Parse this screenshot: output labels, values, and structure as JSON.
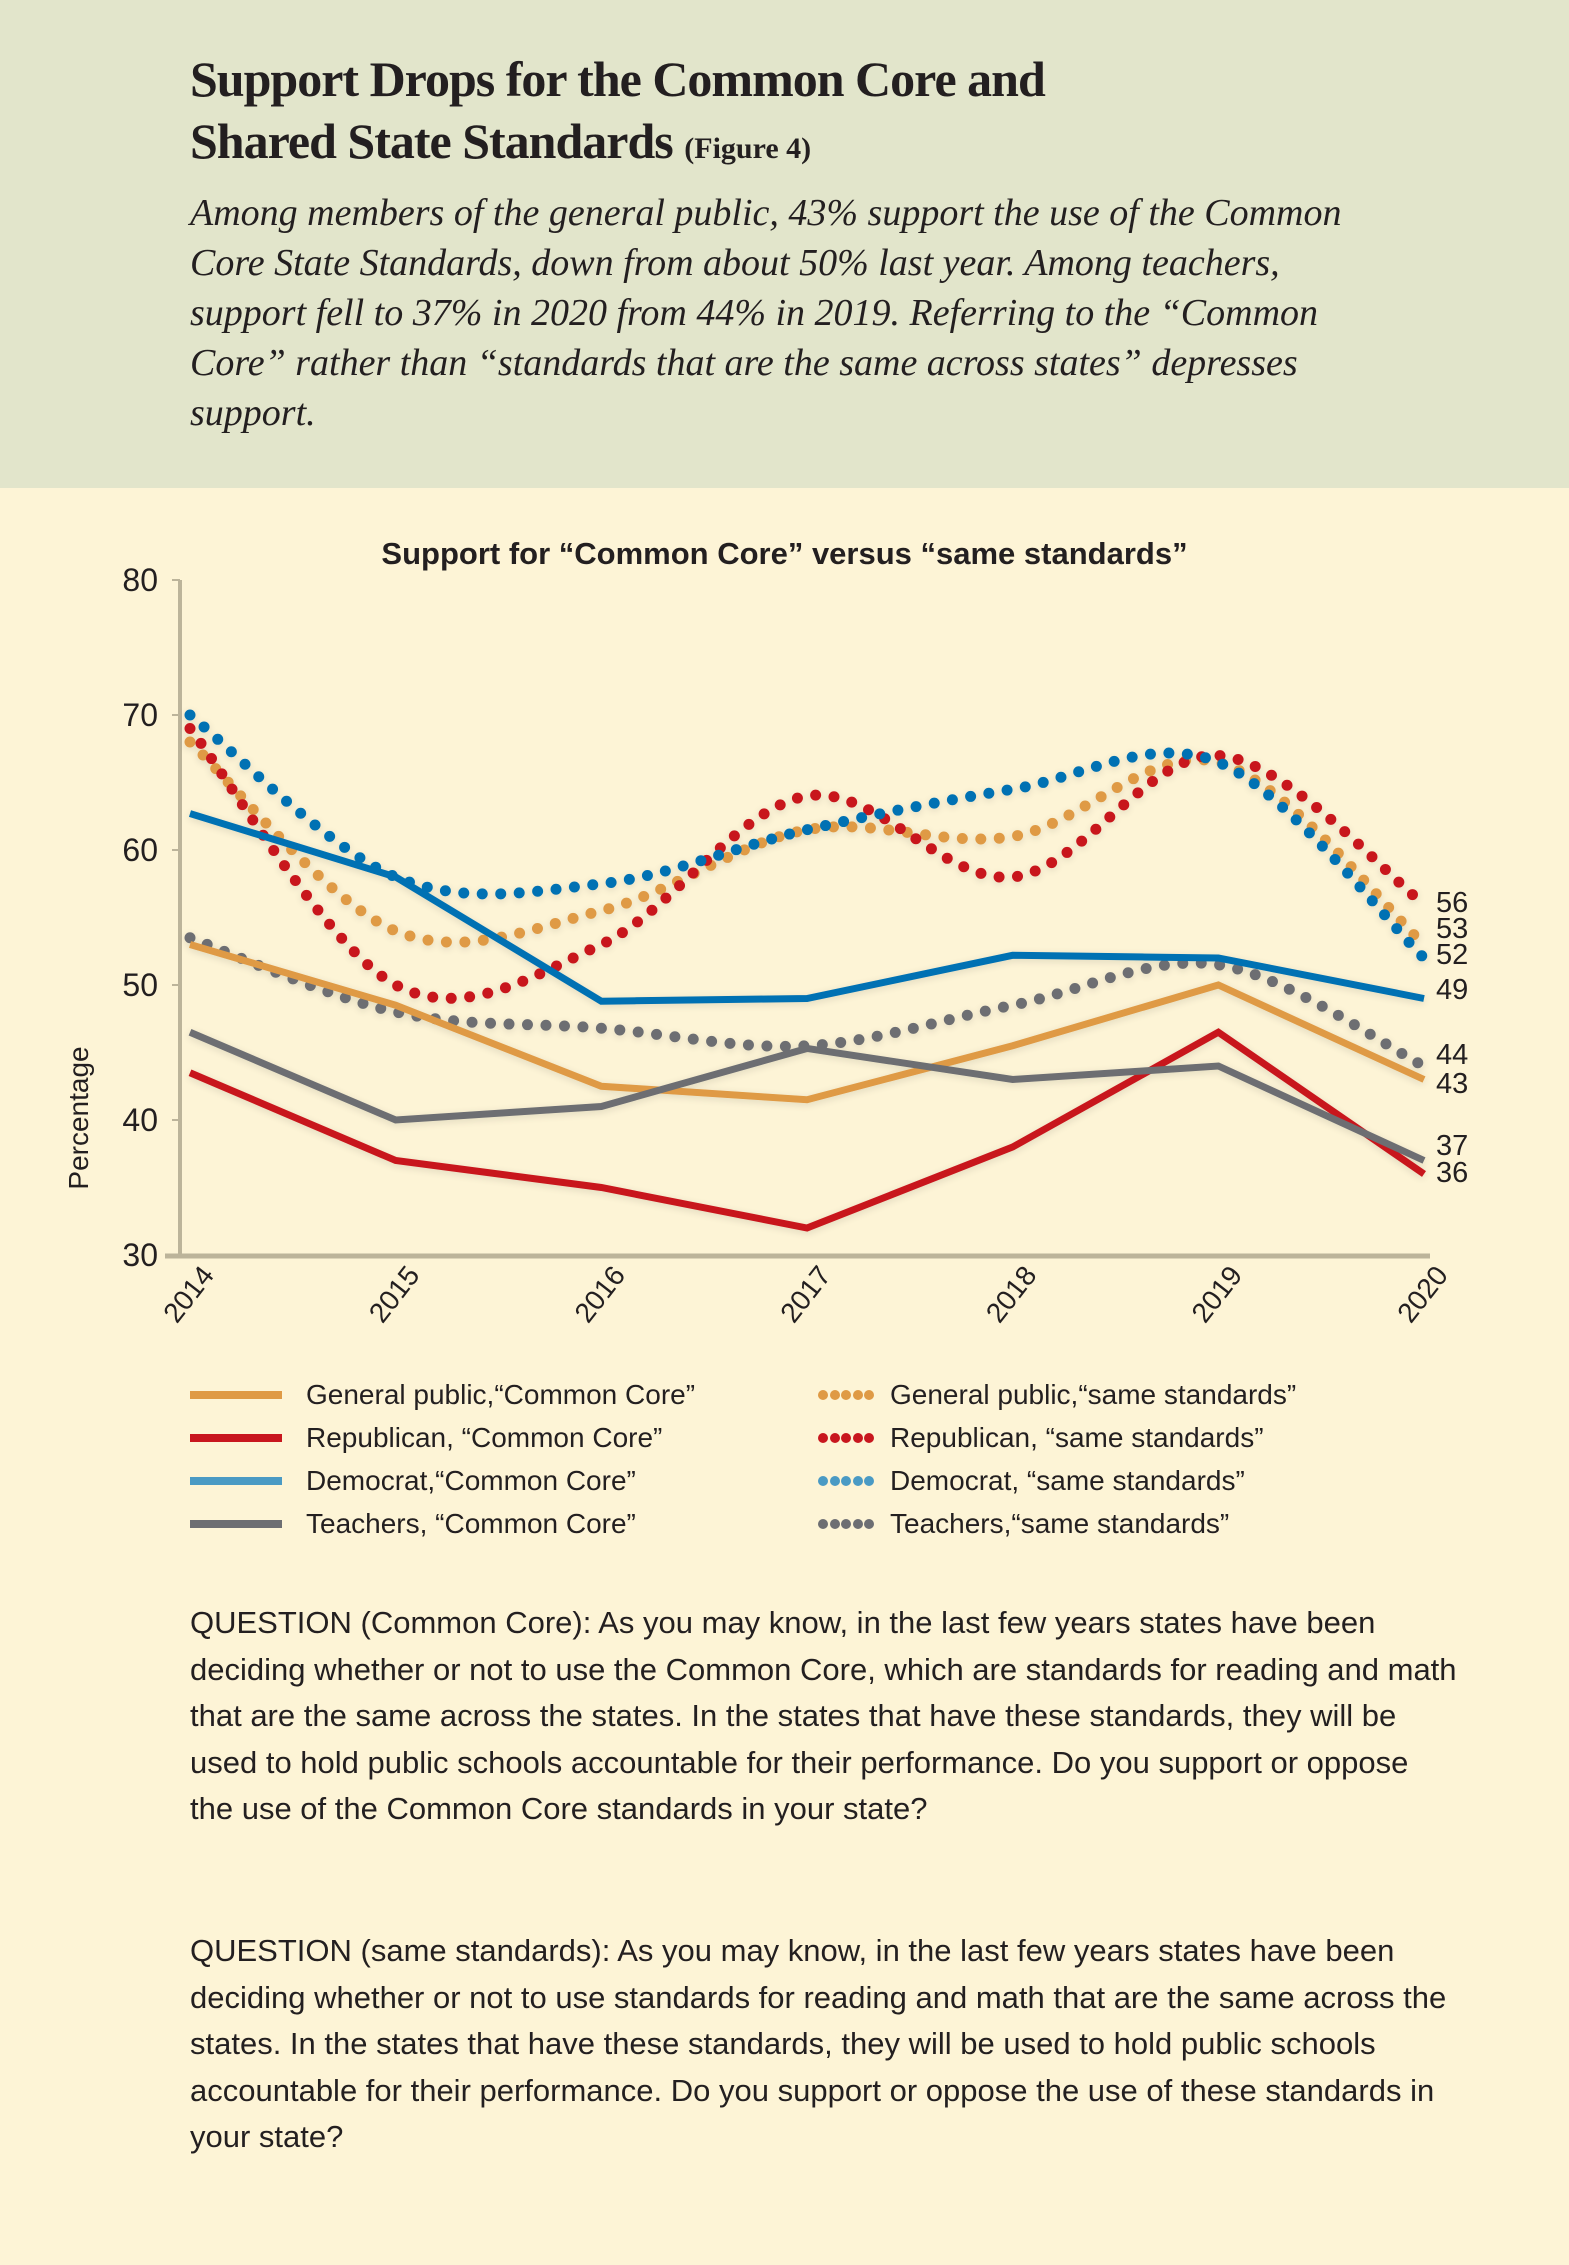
{
  "header": {
    "title_line1": "Support Drops for the Common Core and",
    "title_line2": "Shared State Standards",
    "figure_tag": "(Figure 4)",
    "subtitle": "Among members of the general public, 43% support the use of the Common Core State Standards, down from about 50% last year. Among teachers, support fell to 37% in 2020 from 44% in 2019. Referring to the “Common Core” rather than “standards that are the same across states” depresses support."
  },
  "chart_data": {
    "type": "line",
    "title": "Support for “Common Core” versus “same standards”",
    "xlabel": "",
    "ylabel": "Percentage",
    "x": [
      "2014",
      "2015",
      "2016",
      "2017",
      "2018",
      "2019",
      "2020"
    ],
    "yticks": [
      30,
      40,
      50,
      60,
      70,
      80
    ],
    "ylim": [
      30,
      80
    ],
    "grid": false,
    "legend_position": "bottom",
    "series": [
      {
        "name": "General public, “Common Core”",
        "style": "solid",
        "color": "#df9a45",
        "values": [
          53,
          48.5,
          42.5,
          41.5,
          45.5,
          50,
          43
        ],
        "end_label": "43"
      },
      {
        "name": "Republican, “Common Core”",
        "style": "solid",
        "color": "#c8161e",
        "values": [
          43.5,
          37,
          35,
          32,
          38,
          46.5,
          36
        ],
        "end_label": "36"
      },
      {
        "name": "Democrat, “Common Core”",
        "style": "solid",
        "color": "#0071b3",
        "values": [
          62.7,
          58,
          48.8,
          49,
          52.2,
          52,
          49
        ],
        "end_label": "49"
      },
      {
        "name": "Teachers, “Common Core”",
        "style": "solid",
        "color": "#6d6e72",
        "values": [
          46.5,
          40,
          41,
          45.3,
          43,
          44,
          37
        ],
        "end_label": "37"
      },
      {
        "name": "General public, “same standards”",
        "style": "dotted",
        "color": "#df9a45",
        "values": [
          68,
          54,
          55.5,
          61.5,
          61,
          66.5,
          53
        ],
        "end_label": "53"
      },
      {
        "name": "Republican, “same standards”",
        "style": "dotted",
        "color": "#c8161e",
        "values": [
          69,
          50,
          53,
          64,
          58,
          67,
          56
        ],
        "end_label": "56"
      },
      {
        "name": "Democrat, “same standards”",
        "style": "dotted",
        "color": "#0071b3",
        "values": [
          70,
          58,
          57.5,
          61.5,
          64.5,
          66.5,
          52
        ],
        "end_label": "52"
      },
      {
        "name": "Teachers, “same standards”",
        "style": "dotted",
        "color": "#6d6e72",
        "values": [
          53.5,
          48,
          46.8,
          45.5,
          48.5,
          51.5,
          44
        ],
        "end_label": "44"
      }
    ]
  },
  "legend": {
    "items": [
      {
        "label": "General public,“Common Core”",
        "style": "solid",
        "color": "#df9a45"
      },
      {
        "label": "Republican, “Common Core”",
        "style": "solid",
        "color": "#c8161e"
      },
      {
        "label": "Democrat,“Common Core”",
        "style": "solid",
        "color": "#4a9ac4"
      },
      {
        "label": "Teachers, “Common Core”",
        "style": "solid",
        "color": "#6d6e72"
      },
      {
        "label": "General public,“same standards”",
        "style": "dotted",
        "color": "#df9a45"
      },
      {
        "label": "Republican, “same standards”",
        "style": "dotted",
        "color": "#c8161e"
      },
      {
        "label": "Democrat, “same standards”",
        "style": "dotted",
        "color": "#4a9ac4"
      },
      {
        "label": "Teachers,“same standards”",
        "style": "dotted",
        "color": "#6d6e72"
      }
    ]
  },
  "questions": {
    "common_core": "QUESTION (Common Core): As you may know, in the last few years states have been deciding whether or not to use the Common Core, which are standards for reading and math that are the same across the states. In the states that have these standards, they will be used to hold public schools accountable for their performance. Do you support or oppose the use of the Common Core standards in your state?",
    "same_standards": "QUESTION (same standards): As you may know, in the last few years states have been deciding whether or not to use standards for reading and math that are the same across the states. In the states that have these standards, they will be used to hold public schools accountable for their performance. Do you support or oppose the use of these standards in your state?"
  },
  "colors": {
    "header_bg": "#e2e5cb",
    "page_bg": "#fdf4d6",
    "axis": "#bcb49a"
  }
}
